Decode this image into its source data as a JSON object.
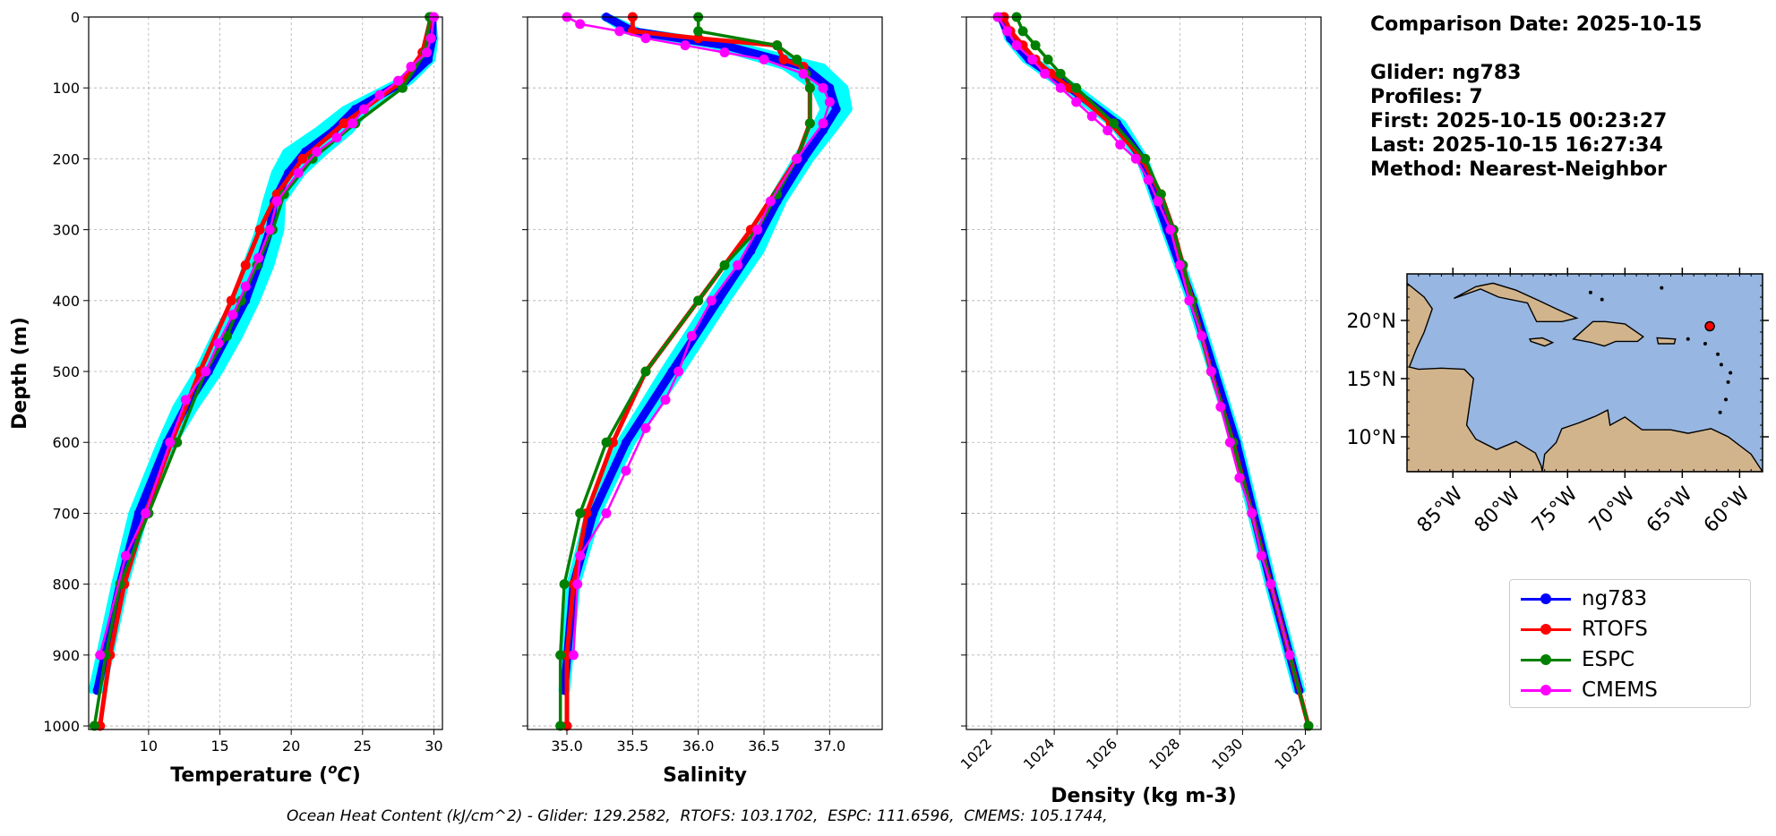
{
  "info": {
    "comparison_date": "Comparison Date: 2025-10-15",
    "glider": "Glider: ng783",
    "profiles": "Profiles: 7",
    "first": "First: 2025-10-15 00:23:27",
    "last": "Last: 2025-10-15 16:27:34",
    "method": "Method: Nearest-Neighbor"
  },
  "footer": "Ocean Heat Content (kJ/cm^2) - Glider: 129.2582,  RTOFS: 103.1702,  ESPC: 111.6596,  CMEMS: 105.1744,",
  "legend": [
    {
      "name": "ng783",
      "color": "#0000ff"
    },
    {
      "name": "RTOFS",
      "color": "#ff0000"
    },
    {
      "name": "ESPC",
      "color": "#008000"
    },
    {
      "name": "CMEMS",
      "color": "#ff00ff"
    }
  ],
  "map": {
    "lat_ticks": [
      "20°N",
      "15°N",
      "10°N"
    ],
    "lon_ticks": [
      "85°W",
      "80°W",
      "75°W",
      "70°W",
      "65°W",
      "60°W"
    ],
    "extent": {
      "lon": [
        -89,
        -58
      ],
      "lat": [
        7,
        24
      ]
    },
    "glider_position": {
      "lon": -62.6,
      "lat": 19.5
    },
    "ocean_color": "#97b6e1",
    "land_color": "#d2b48c"
  },
  "chart_data": [
    {
      "type": "line",
      "xlabel": "Temperature (°C)",
      "ylabel": "Depth (m)",
      "xlim": [
        5.8,
        30.6
      ],
      "ylim": [
        1005,
        0
      ],
      "xticks": [
        10,
        15,
        20,
        25,
        30
      ],
      "yticks": [
        0,
        100,
        200,
        300,
        400,
        500,
        600,
        700,
        800,
        900,
        1000
      ],
      "grid": true,
      "series": [
        {
          "name": "ng783",
          "color": "#0000ff",
          "style": "band",
          "band_color": "#00ffff",
          "band_width": [
            0,
            0.2,
            0.3,
            0.4,
            0.8,
            1.2,
            1.4,
            1.0,
            0.6,
            0.8,
            0.9,
            0.8,
            0.9,
            0.8,
            0.7,
            0.5,
            0.5,
            0.4,
            0.4
          ],
          "depth": [
            0,
            30,
            60,
            90,
            130,
            160,
            190,
            220,
            260,
            300,
            350,
            400,
            450,
            500,
            550,
            600,
            700,
            800,
            950
          ],
          "values": [
            29.9,
            29.9,
            29.6,
            28.0,
            24.5,
            23.0,
            21.0,
            19.8,
            18.8,
            18.5,
            17.7,
            16.8,
            15.5,
            14.2,
            12.6,
            11.3,
            9.3,
            8.0,
            6.4
          ]
        },
        {
          "name": "RTOFS",
          "color": "#ff0000",
          "depth": [
            0,
            50,
            90,
            150,
            200,
            250,
            300,
            350,
            400,
            500,
            600,
            700,
            800,
            900,
            1000
          ],
          "values": [
            29.8,
            29.2,
            27.8,
            23.7,
            20.8,
            19.0,
            17.8,
            16.8,
            15.8,
            13.6,
            11.6,
            9.8,
            8.3,
            7.3,
            6.6
          ]
        },
        {
          "name": "ESPC",
          "color": "#008000",
          "depth": [
            0,
            50,
            100,
            150,
            200,
            250,
            300,
            350,
            400,
            450,
            500,
            600,
            700,
            800,
            900,
            1000
          ],
          "values": [
            29.7,
            29.4,
            27.8,
            24.5,
            21.5,
            19.5,
            18.7,
            17.6,
            16.5,
            15.5,
            14.0,
            12.0,
            10.0,
            8.0,
            7.0,
            6.2
          ]
        },
        {
          "name": "CMEMS",
          "color": "#ff00ff",
          "depth": [
            0,
            30,
            50,
            70,
            90,
            110,
            130,
            150,
            170,
            190,
            220,
            260,
            300,
            340,
            380,
            420,
            460,
            500,
            540,
            600,
            700,
            760,
            900
          ],
          "values": [
            30.0,
            29.8,
            29.5,
            28.4,
            27.5,
            26.2,
            25.1,
            24.3,
            23.2,
            21.8,
            20.5,
            19.0,
            18.5,
            17.7,
            16.8,
            15.9,
            14.9,
            14.0,
            12.6,
            11.5,
            9.8,
            8.4,
            6.6
          ]
        }
      ]
    },
    {
      "type": "line",
      "xlabel": "Salinity",
      "xlim": [
        34.7,
        37.4
      ],
      "ylim": [
        1005,
        0
      ],
      "xticks": [
        35.0,
        35.5,
        36.0,
        36.5,
        37.0
      ],
      "yticks": [
        0,
        100,
        200,
        300,
        400,
        500,
        600,
        700,
        800,
        900,
        1000
      ],
      "grid": true,
      "series": [
        {
          "name": "ng783",
          "color": "#0000ff",
          "style": "band",
          "band_color": "#00ffff",
          "band_width": [
            0.02,
            0.05,
            0.1,
            0.15,
            0.12,
            0.1,
            0.08,
            0.06,
            0.05,
            0.08,
            0.07,
            0.07,
            0.05,
            0.04,
            0.03,
            0.02
          ],
          "depth": [
            0,
            20,
            40,
            70,
            100,
            130,
            160,
            200,
            260,
            330,
            400,
            500,
            600,
            700,
            800,
            950
          ],
          "values": [
            35.3,
            35.5,
            36.2,
            36.8,
            37.0,
            37.05,
            36.95,
            36.8,
            36.6,
            36.4,
            36.15,
            35.8,
            35.45,
            35.2,
            35.05,
            34.98
          ]
        },
        {
          "name": "RTOFS",
          "color": "#ff0000",
          "depth": [
            0,
            20,
            30,
            40,
            60,
            70,
            100,
            150,
            200,
            300,
            400,
            500,
            600,
            700,
            800,
            900,
            1000
          ],
          "values": [
            35.5,
            35.5,
            36.0,
            36.6,
            36.65,
            36.8,
            36.85,
            36.85,
            36.75,
            36.4,
            36.0,
            35.6,
            35.35,
            35.15,
            35.05,
            35.0,
            35.0
          ]
        },
        {
          "name": "ESPC",
          "color": "#008000",
          "depth": [
            0,
            20,
            40,
            60,
            80,
            100,
            150,
            200,
            250,
            300,
            350,
            400,
            500,
            600,
            700,
            800,
            900,
            1000
          ],
          "values": [
            36.0,
            36.0,
            36.6,
            36.75,
            36.82,
            36.85,
            36.85,
            36.75,
            36.6,
            36.45,
            36.2,
            36.0,
            35.6,
            35.3,
            35.1,
            34.98,
            34.95,
            34.95
          ]
        },
        {
          "name": "CMEMS",
          "color": "#ff00ff",
          "depth": [
            0,
            10,
            20,
            30,
            40,
            50,
            60,
            80,
            100,
            120,
            150,
            200,
            260,
            300,
            350,
            400,
            450,
            500,
            540,
            580,
            640,
            700,
            760,
            800,
            900
          ],
          "values": [
            35.0,
            35.1,
            35.4,
            35.6,
            35.9,
            36.2,
            36.5,
            36.8,
            36.95,
            37.0,
            36.95,
            36.75,
            36.55,
            36.45,
            36.3,
            36.1,
            35.95,
            35.85,
            35.75,
            35.6,
            35.45,
            35.3,
            35.1,
            35.08,
            35.05
          ]
        }
      ]
    },
    {
      "type": "line",
      "xlabel": "Density (kg m-3)",
      "xlim": [
        1021.2,
        1032.5
      ],
      "ylim": [
        1005,
        0
      ],
      "xticks": [
        1022,
        1024,
        1026,
        1028,
        1030,
        1032
      ],
      "yticks": [
        0,
        100,
        200,
        300,
        400,
        500,
        600,
        700,
        800,
        900,
        1000
      ],
      "grid": true,
      "series": [
        {
          "name": "ng783",
          "color": "#0000ff",
          "style": "band",
          "band_color": "#00ffff",
          "band_width": [
            0,
            0.1,
            0.15,
            0.2,
            0.2,
            0.1,
            0.1,
            0.1,
            0.1,
            0.1,
            0.1,
            0.1
          ],
          "depth": [
            0,
            30,
            60,
            100,
            150,
            200,
            300,
            400,
            500,
            600,
            800,
            950
          ],
          "values": [
            1022.3,
            1022.6,
            1023.2,
            1024.5,
            1026.0,
            1026.8,
            1027.6,
            1028.4,
            1029.1,
            1029.8,
            1030.9,
            1031.8
          ]
        },
        {
          "name": "RTOFS",
          "color": "#ff0000",
          "depth": [
            0,
            20,
            40,
            60,
            80,
            100,
            150,
            200,
            250,
            300,
            350,
            400,
            500,
            600,
            700,
            800,
            900,
            1000
          ],
          "values": [
            1022.4,
            1022.6,
            1023.0,
            1023.4,
            1023.9,
            1024.5,
            1025.8,
            1026.8,
            1027.4,
            1027.8,
            1028.1,
            1028.4,
            1029.0,
            1029.7,
            1030.3,
            1030.9,
            1031.5,
            1032.1
          ]
        },
        {
          "name": "ESPC",
          "color": "#008000",
          "depth": [
            0,
            20,
            40,
            60,
            80,
            100,
            150,
            200,
            250,
            300,
            350,
            400,
            500,
            600,
            700,
            800,
            900,
            1000
          ],
          "values": [
            1022.8,
            1023.0,
            1023.4,
            1023.8,
            1024.2,
            1024.7,
            1025.9,
            1026.9,
            1027.4,
            1027.8,
            1028.1,
            1028.4,
            1029.0,
            1029.7,
            1030.3,
            1030.9,
            1031.5,
            1032.1
          ]
        },
        {
          "name": "CMEMS",
          "color": "#ff00ff",
          "depth": [
            0,
            20,
            40,
            60,
            80,
            100,
            120,
            140,
            160,
            180,
            200,
            230,
            260,
            300,
            350,
            400,
            450,
            500,
            550,
            600,
            650,
            700,
            760,
            800,
            900
          ],
          "values": [
            1022.2,
            1022.5,
            1022.8,
            1023.3,
            1023.7,
            1024.2,
            1024.7,
            1025.2,
            1025.7,
            1026.1,
            1026.6,
            1027.0,
            1027.3,
            1027.7,
            1028.0,
            1028.3,
            1028.7,
            1029.0,
            1029.3,
            1029.6,
            1029.9,
            1030.3,
            1030.6,
            1030.9,
            1031.5
          ]
        }
      ]
    }
  ]
}
